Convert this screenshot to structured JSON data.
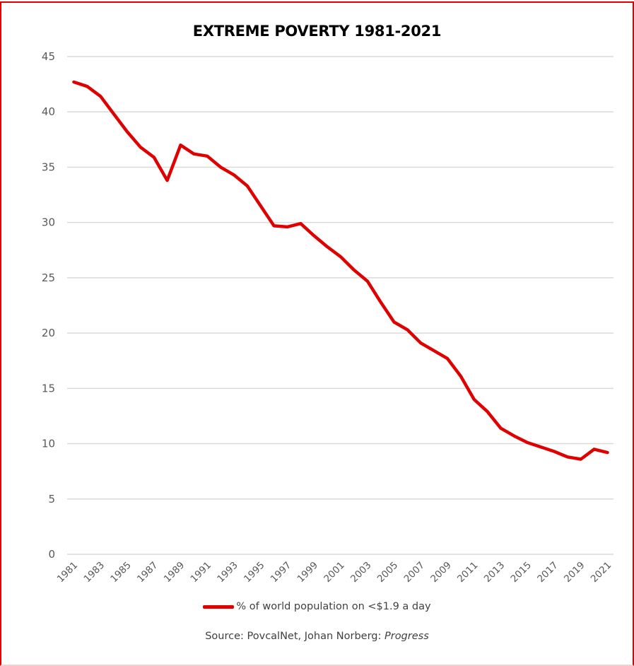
{
  "chart_data": {
    "type": "line",
    "title": "EXTREME POVERTY 1981-2021",
    "xlabel": "",
    "ylabel": "",
    "ylim": [
      0,
      45
    ],
    "yticks": [
      0,
      5,
      10,
      15,
      20,
      25,
      30,
      35,
      40,
      45
    ],
    "xtick_labels": [
      "1981",
      "1983",
      "1985",
      "1987",
      "1989",
      "1991",
      "1993",
      "1995",
      "1997",
      "1999",
      "2001",
      "2003",
      "2005",
      "2007",
      "2009",
      "2011",
      "2013",
      "2015",
      "2017",
      "2019",
      "2021"
    ],
    "grid": "horizontal",
    "legend_position": "bottom",
    "x": [
      1981,
      1982,
      1983,
      1984,
      1985,
      1986,
      1987,
      1988,
      1989,
      1990,
      1991,
      1992,
      1993,
      1994,
      1995,
      1996,
      1997,
      1998,
      1999,
      2000,
      2001,
      2002,
      2003,
      2004,
      2005,
      2006,
      2007,
      2008,
      2009,
      2010,
      2011,
      2012,
      2013,
      2014,
      2015,
      2016,
      2017,
      2018,
      2019,
      2020,
      2021
    ],
    "series": [
      {
        "name": "% of world population on <$1.9 a day",
        "color": "#e00000",
        "values": [
          42.7,
          42.3,
          41.4,
          39.8,
          38.2,
          36.8,
          35.9,
          33.8,
          37.0,
          36.2,
          36.0,
          35.0,
          34.3,
          33.3,
          31.5,
          29.7,
          29.6,
          29.9,
          28.8,
          27.8,
          26.9,
          25.7,
          24.7,
          22.8,
          21.0,
          20.3,
          19.1,
          18.4,
          17.7,
          16.1,
          14.0,
          12.9,
          11.4,
          10.7,
          10.1,
          9.7,
          9.3,
          8.8,
          8.6,
          9.5,
          9.2
        ]
      }
    ]
  },
  "legend": {
    "label": "% of world population on <$1.9 a day"
  },
  "source": {
    "prefix": "Source: PovcalNet, Johan Norberg: ",
    "work": "Progress"
  },
  "colors": {
    "line": "#e00000",
    "grid": "#d9d9d9",
    "border": "#e00000"
  }
}
